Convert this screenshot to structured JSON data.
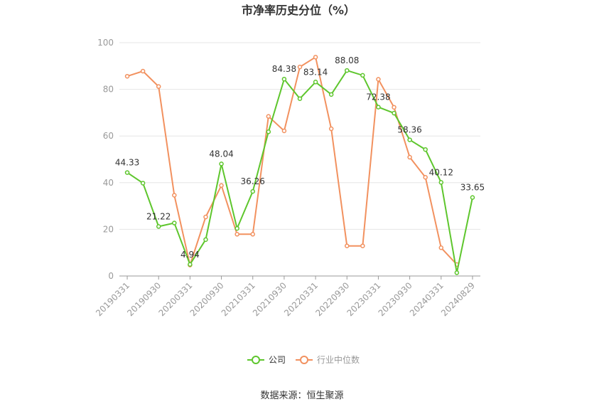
{
  "chart_data": {
    "type": "line",
    "title": "市净率历史分位（%）",
    "ylim": [
      0,
      100
    ],
    "yticks": [
      0,
      20,
      40,
      60,
      80,
      100
    ],
    "x": [
      "20190331",
      "20190630",
      "20190930",
      "20191231",
      "20200331",
      "20200630",
      "20200930",
      "20201231",
      "20210331",
      "20210630",
      "20210930",
      "20211231",
      "20220331",
      "20220630",
      "20220930",
      "20221231",
      "20230331",
      "20230630",
      "20230930",
      "20231231",
      "20240331",
      "20240630",
      "20240829"
    ],
    "xtick_labels": [
      "20190331",
      "20190930",
      "20200331",
      "20200930",
      "20210331",
      "20210930",
      "20220331",
      "20220930",
      "20230331",
      "20230930",
      "20240331",
      "20240829"
    ],
    "series": [
      {
        "name": "公司",
        "color": "#5ec62d",
        "values": [
          44.33,
          39.8,
          21.22,
          22.7,
          4.94,
          15.6,
          48.04,
          20.4,
          36.26,
          61.8,
          84.38,
          76.0,
          83.14,
          77.8,
          88.08,
          86.0,
          72.38,
          69.8,
          58.36,
          54.2,
          40.12,
          1.4,
          33.65
        ],
        "labels": {
          "0": "44.33",
          "2": "21.22",
          "4": "4.94",
          "6": "48.04",
          "8": "36.26",
          "10": "84.38",
          "12": "83.14",
          "14": "88.08",
          "16": "72.38",
          "18": "58.36",
          "20": "40.12",
          "22": "33.65"
        }
      },
      {
        "name": "行业中位数",
        "color": "#f2915f",
        "values": [
          85.6,
          87.8,
          81.2,
          34.6,
          4.7,
          25.3,
          38.8,
          17.9,
          17.9,
          68.4,
          62.2,
          89.6,
          93.8,
          63.1,
          12.9,
          12.9,
          84.3,
          72.3,
          50.9,
          42.3,
          12.1,
          4.9,
          null
        ]
      }
    ],
    "legend": "bottom",
    "grid": true
  },
  "source": "数据来源：恒生聚源"
}
